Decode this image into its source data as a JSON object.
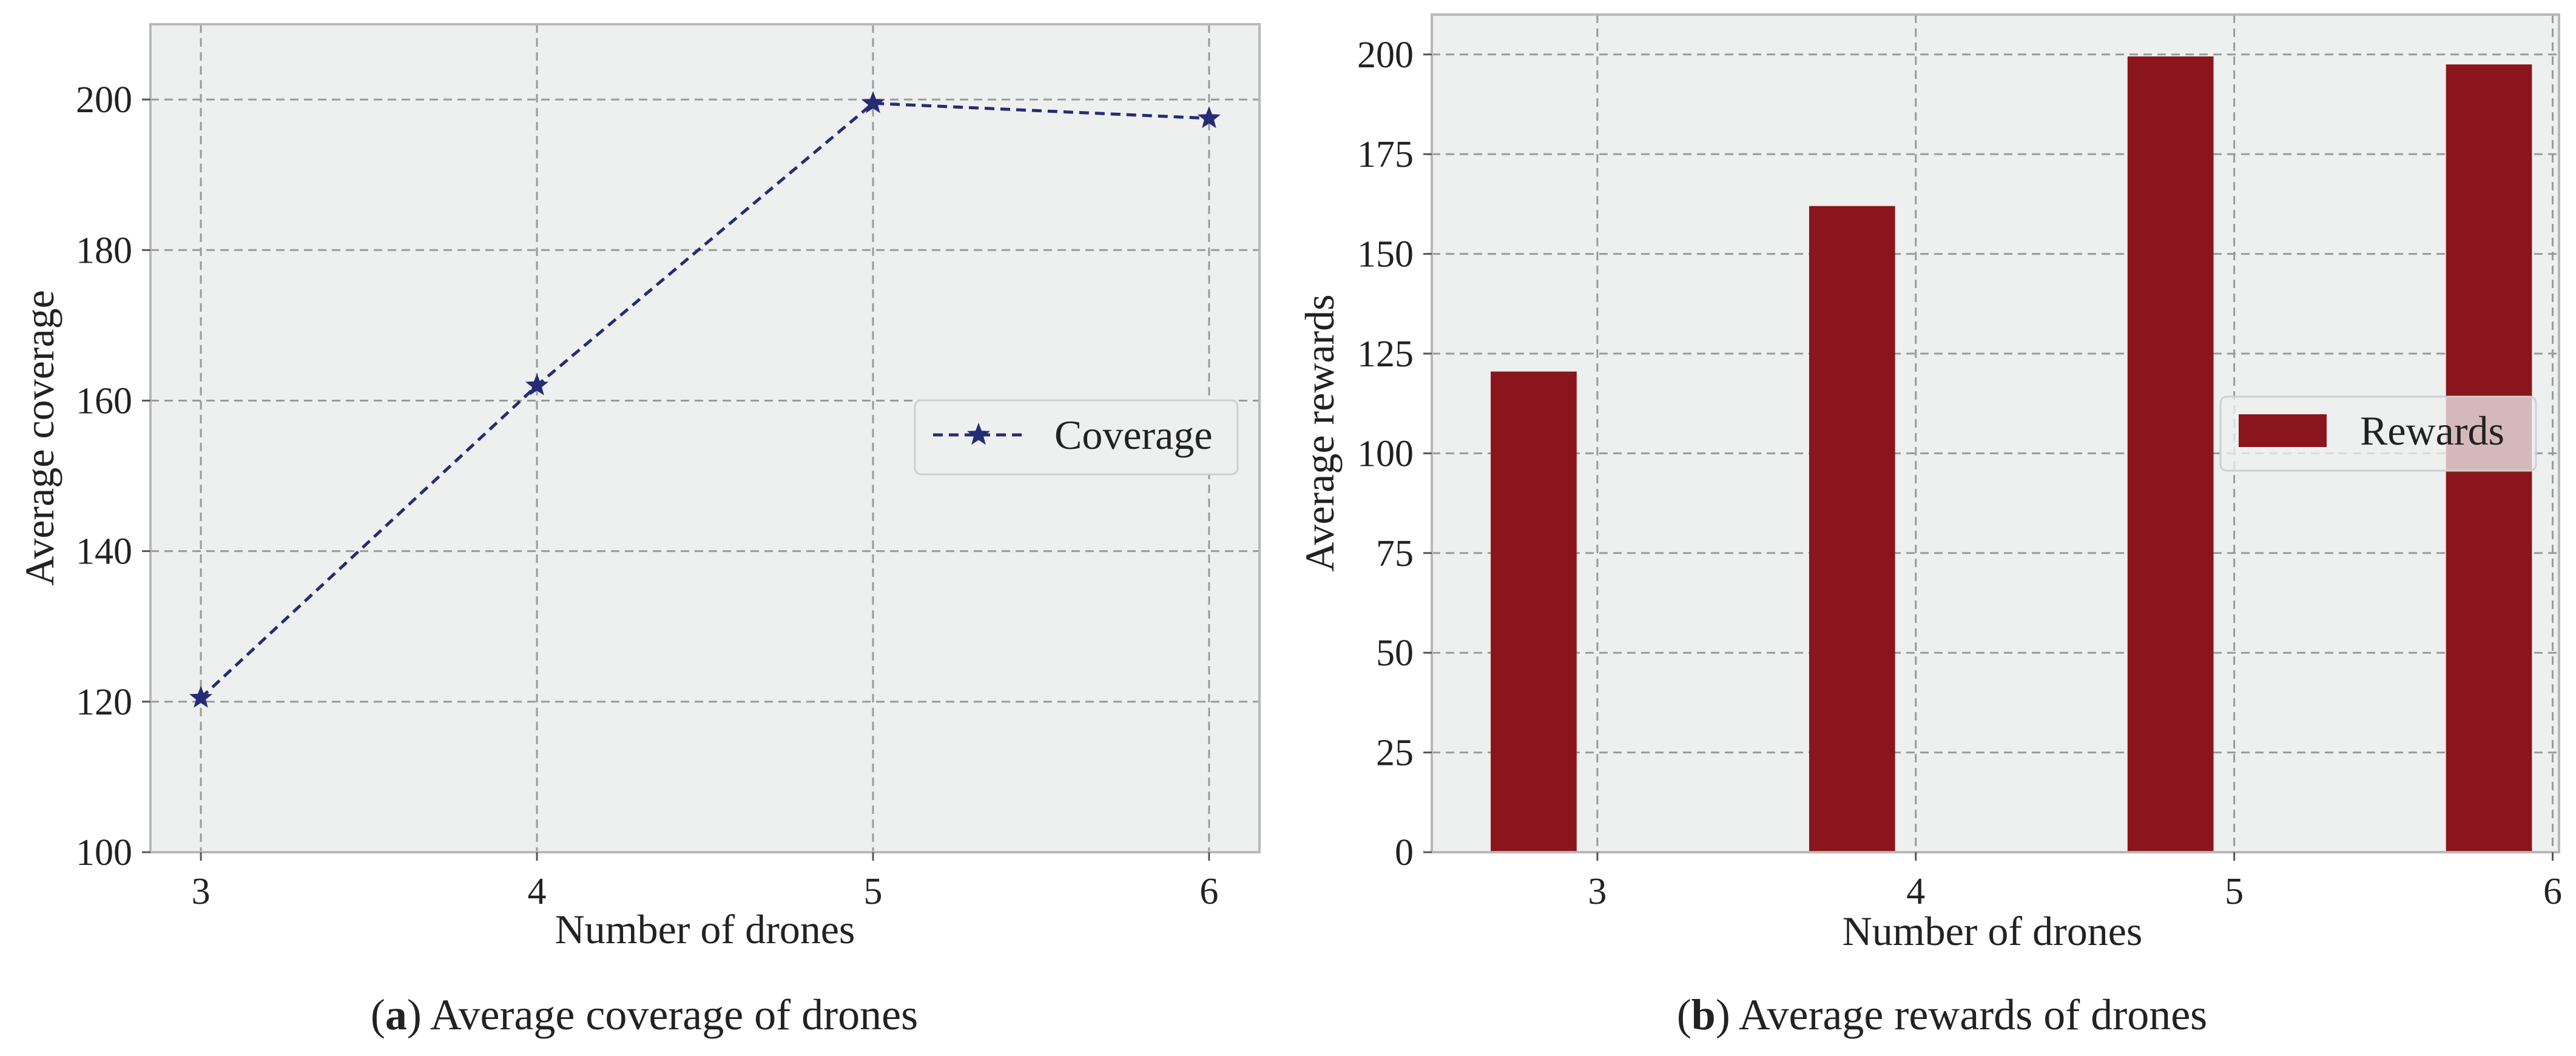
{
  "chart_data": [
    {
      "type": "line",
      "xlabel": "Number of drones",
      "ylabel": "Average coverage",
      "x": [
        3,
        4,
        5,
        6
      ],
      "xlim": [
        2.85,
        6.15
      ],
      "ylim": [
        100,
        210
      ],
      "xticks": [
        "3",
        "4",
        "5",
        "6"
      ],
      "yticks": [
        "100",
        "120",
        "140",
        "160",
        "180",
        "200"
      ],
      "series": [
        {
          "name": "Coverage",
          "values": [
            120.5,
            162,
            199.5,
            197.5
          ],
          "color": "#262b75",
          "linestyle": "dashed",
          "marker": "star"
        }
      ],
      "legend": {
        "placement": "center-right",
        "entries": [
          "Coverage"
        ]
      },
      "grid": true,
      "caption": {
        "label": "a",
        "text": " Average coverage of drones"
      }
    },
    {
      "type": "bar",
      "xlabel": "Number of drones",
      "ylabel": "Average rewards",
      "categories": [
        "3",
        "4",
        "5",
        "6"
      ],
      "bar_x": [
        2.8,
        3.8,
        4.8,
        5.8
      ],
      "xlim": [
        2.48,
        6.02
      ],
      "ylim": [
        0,
        210
      ],
      "xticks": [
        "3",
        "4",
        "5",
        "6"
      ],
      "yticks": [
        "0",
        "25",
        "50",
        "75",
        "100",
        "125",
        "150",
        "175",
        "200"
      ],
      "series": [
        {
          "name": "Rewards",
          "values": [
            120.5,
            162,
            199.5,
            197.5
          ],
          "color": "#8b151c"
        }
      ],
      "legend": {
        "placement": "center-right",
        "entries": [
          "Rewards"
        ]
      },
      "grid": true,
      "caption": {
        "label": "b",
        "text": " Average rewards of drones"
      }
    }
  ]
}
